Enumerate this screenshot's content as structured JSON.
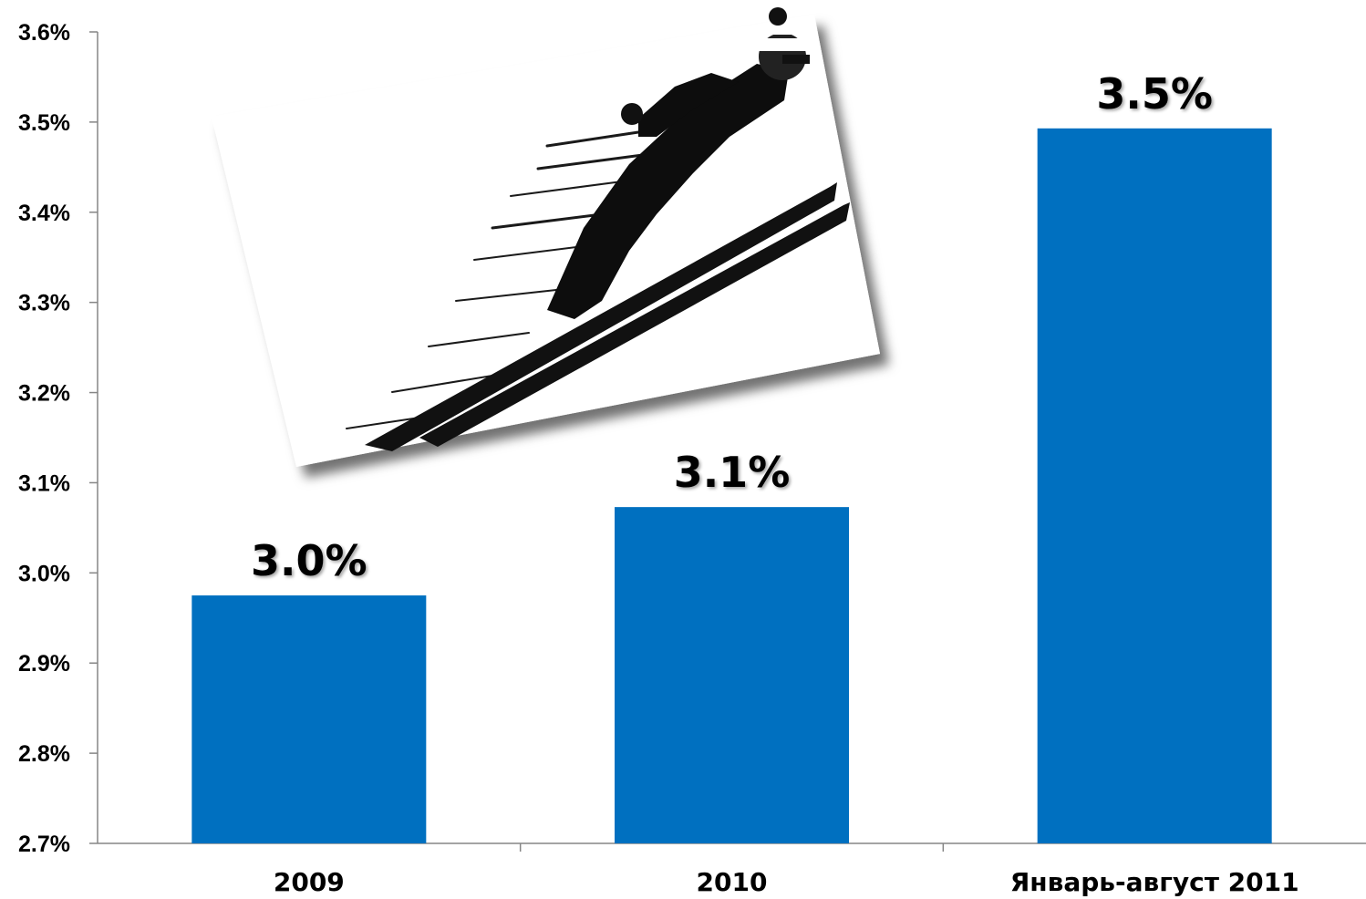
{
  "chart_data": {
    "type": "bar",
    "categories": [
      "2009",
      "2010",
      "Январь-август 2011"
    ],
    "values": [
      2.975,
      3.073,
      3.493
    ],
    "data_labels": [
      "3.0%",
      "3.1%",
      "3.5%"
    ],
    "yticks": [
      "2.7%",
      "2.8%",
      "2.9%",
      "3.0%",
      "3.1%",
      "3.2%",
      "3.3%",
      "3.4%",
      "3.5%",
      "3.6%"
    ],
    "ylim": [
      2.7,
      3.6
    ],
    "grid": false,
    "legend": "none",
    "bar_color": "#0070C0"
  },
  "decoration": {
    "image": "ski-jumper-illustration"
  }
}
